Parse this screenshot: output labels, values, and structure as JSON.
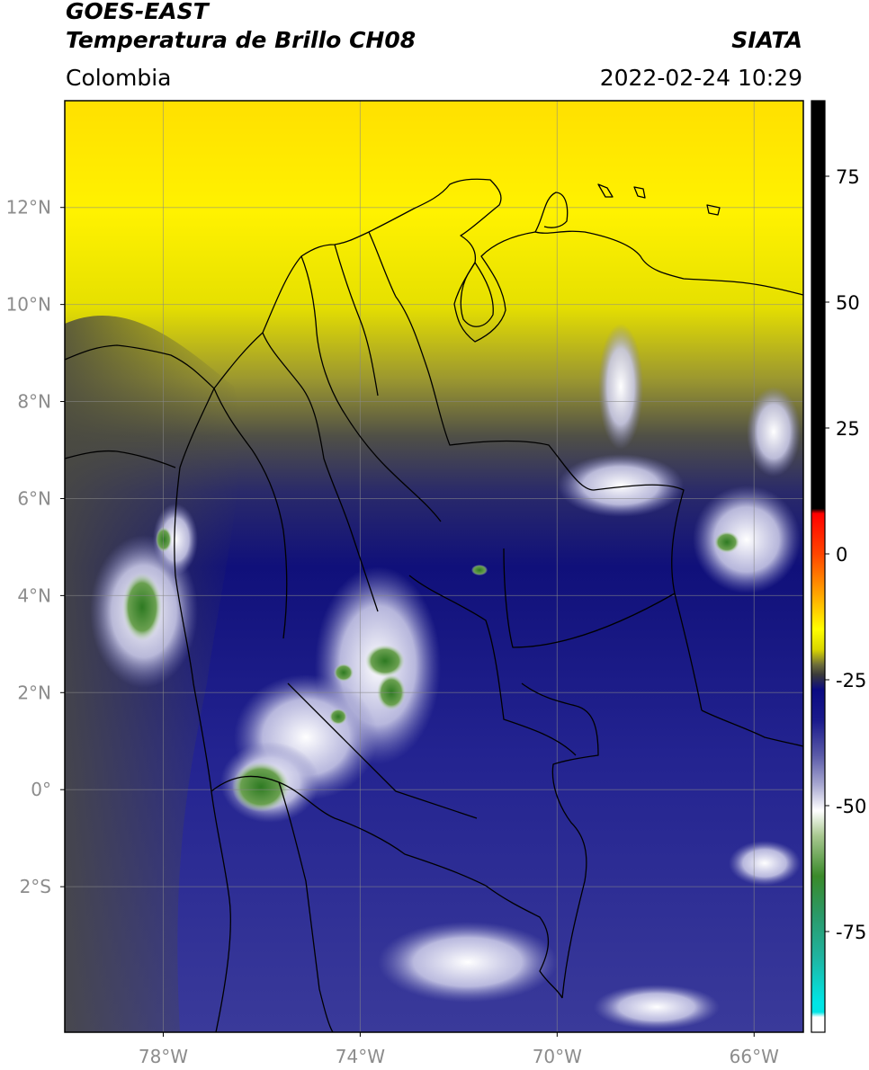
{
  "header": {
    "satellite": "GOES-EAST",
    "product": "Temperatura de Brillo CH08",
    "org": "SIATA",
    "region": "Colombia",
    "datetime": "2022-02-24 10:29"
  },
  "map": {
    "lon_range": [
      -80,
      -65
    ],
    "lat_range": [
      -5,
      14.2
    ],
    "x_ticks": [
      {
        "value": -78,
        "label": "78°W"
      },
      {
        "value": -74,
        "label": "74°W"
      },
      {
        "value": -70,
        "label": "70°W"
      },
      {
        "value": -66,
        "label": "66°W"
      }
    ],
    "y_ticks": [
      {
        "value": 12,
        "label": "12°N"
      },
      {
        "value": 10,
        "label": "10°N"
      },
      {
        "value": 8,
        "label": "8°N"
      },
      {
        "value": 6,
        "label": "6°N"
      },
      {
        "value": 4,
        "label": "4°N"
      },
      {
        "value": 2,
        "label": "2°N"
      },
      {
        "value": 0,
        "label": "0°"
      },
      {
        "value": -2,
        "label": "2°S"
      }
    ],
    "gridlines": true
  },
  "colorbar": {
    "range": [
      -95,
      90
    ],
    "ticks": [
      {
        "value": 75,
        "label": "75"
      },
      {
        "value": 50,
        "label": "50"
      },
      {
        "value": 25,
        "label": "25"
      },
      {
        "value": 0,
        "label": "0"
      },
      {
        "value": -25,
        "label": "-25"
      },
      {
        "value": -50,
        "label": "-50"
      },
      {
        "value": -75,
        "label": "-75"
      }
    ],
    "stops": [
      {
        "value": 90,
        "color": "#000000"
      },
      {
        "value": 9,
        "color": "#000000"
      },
      {
        "value": 8,
        "color": "#ff0000"
      },
      {
        "value": 0,
        "color": "#ff4500"
      },
      {
        "value": -8,
        "color": "#ffa500"
      },
      {
        "value": -15,
        "color": "#ffff00"
      },
      {
        "value": -19,
        "color": "#d9d600"
      },
      {
        "value": -22,
        "color": "#6e6e3a"
      },
      {
        "value": -24,
        "color": "#3a3a3a"
      },
      {
        "value": -27,
        "color": "#0a0a82"
      },
      {
        "value": -33,
        "color": "#1a1a8c"
      },
      {
        "value": -40,
        "color": "#5a5aa8"
      },
      {
        "value": -46,
        "color": "#aaaad2"
      },
      {
        "value": -51,
        "color": "#ffffff"
      },
      {
        "value": -56,
        "color": "#a8c890"
      },
      {
        "value": -64,
        "color": "#3a8a2a"
      },
      {
        "value": -72,
        "color": "#2a9a6a"
      },
      {
        "value": -80,
        "color": "#20b4a0"
      },
      {
        "value": -89,
        "color": "#00e5e5"
      },
      {
        "value": -91,
        "color": "#00e5e5"
      },
      {
        "value": -92,
        "color": "#ffffff"
      },
      {
        "value": -95,
        "color": "#ffffff"
      }
    ]
  }
}
